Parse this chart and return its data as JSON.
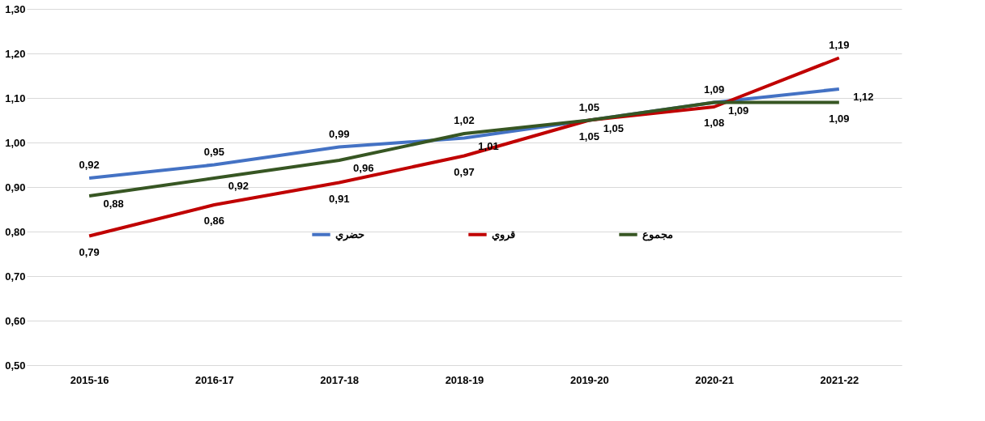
{
  "chart_data": {
    "type": "line",
    "categories": [
      "2015-16",
      "2016-17",
      "2017-18",
      "2018-19",
      "2019-20",
      "2020-21",
      "2021-22"
    ],
    "series": [
      {
        "name": "حضري",
        "color": "#4472c4",
        "values": [
          0.92,
          0.95,
          0.99,
          1.01,
          1.05,
          1.09,
          1.12
        ],
        "value_labels": [
          "0,92",
          "0,95",
          "0,99",
          "1,01",
          "1,05",
          "1,09",
          "1,12"
        ]
      },
      {
        "name": "قروي",
        "color": "#c00000",
        "values": [
          0.79,
          0.86,
          0.91,
          0.97,
          1.05,
          1.08,
          1.19
        ],
        "value_labels": [
          "0,79",
          "0,86",
          "0,91",
          "0,97",
          "1,05",
          "1,08",
          "1,19"
        ]
      },
      {
        "name": "مجموع",
        "color": "#375623",
        "values": [
          0.88,
          0.92,
          0.96,
          1.02,
          1.05,
          1.09,
          1.09
        ],
        "value_labels": [
          "0,88",
          "0,92",
          "0,96",
          "1,02",
          "1,05",
          "1,09",
          "1,09"
        ]
      }
    ],
    "ylim": [
      0.5,
      1.3
    ],
    "yticks": [
      {
        "value": 0.5,
        "label": "0,50"
      },
      {
        "value": 0.6,
        "label": "0,60"
      },
      {
        "value": 0.7,
        "label": "0,70"
      },
      {
        "value": 0.8,
        "label": "0,80"
      },
      {
        "value": 0.9,
        "label": "0,90"
      },
      {
        "value": 1.0,
        "label": "1,00"
      },
      {
        "value": 1.1,
        "label": "1,10"
      },
      {
        "value": 1.2,
        "label": "1,20"
      },
      {
        "value": 1.3,
        "label": "1,30"
      }
    ],
    "grid": "y",
    "legend": "center",
    "marker": "none",
    "line_style": "solid"
  }
}
